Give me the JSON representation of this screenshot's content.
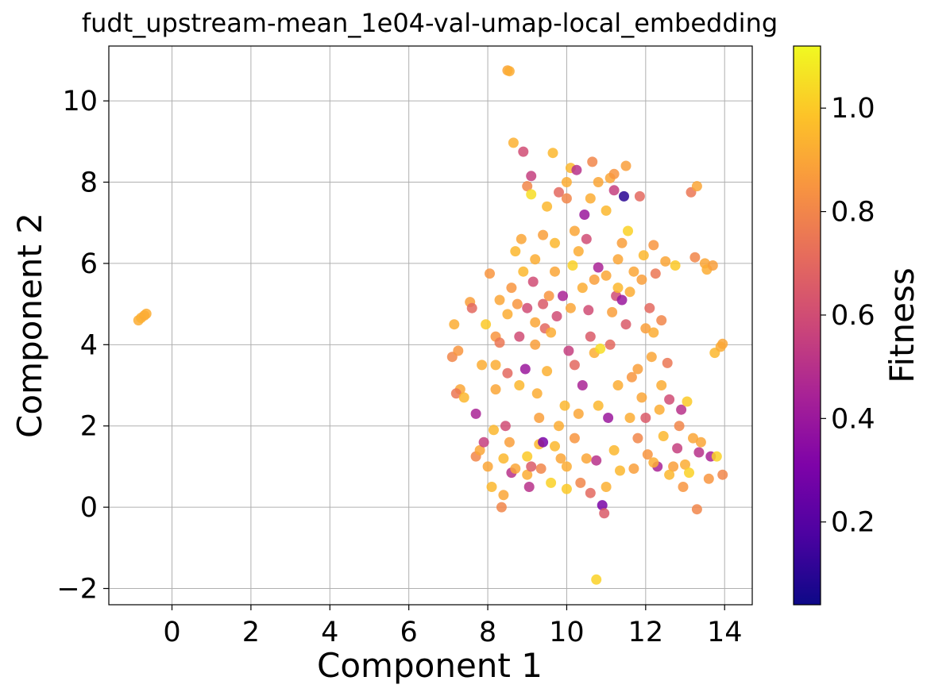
{
  "chart_data": {
    "type": "scatter",
    "title": "fudt_upstream-mean_1e04-val-umap-local_embedding",
    "xlabel": "Component 1",
    "ylabel": "Component 2",
    "xlim": [
      -1.6,
      14.7
    ],
    "ylim": [
      -2.4,
      11.35
    ],
    "xticks": [
      0,
      2,
      4,
      6,
      8,
      10,
      12,
      14
    ],
    "xtick_labels": [
      "0",
      "2",
      "4",
      "6",
      "8",
      "10",
      "12",
      "14"
    ],
    "yticks": [
      -2,
      0,
      2,
      4,
      6,
      8,
      10
    ],
    "ytick_labels": [
      "−2",
      "0",
      "2",
      "4",
      "6",
      "8",
      "10"
    ],
    "grid": true,
    "colormap": "plasma",
    "colorbar": {
      "label": "Fitness",
      "range": [
        0.04,
        1.12
      ],
      "ticks": [
        0.2,
        0.4,
        0.6,
        0.8,
        1.0
      ],
      "tick_labels": [
        "0.2",
        "0.4",
        "0.6",
        "0.8",
        "1.0"
      ]
    },
    "points": [
      [
        -0.85,
        4.6,
        0.92
      ],
      [
        -0.78,
        4.66,
        0.93
      ],
      [
        -0.7,
        4.72,
        0.91
      ],
      [
        -0.65,
        4.76,
        0.92
      ],
      [
        8.5,
        10.75,
        0.9
      ],
      [
        8.55,
        10.73,
        0.92
      ],
      [
        10.75,
        -1.78,
        1.02
      ],
      [
        7.1,
        3.7,
        0.8
      ],
      [
        7.15,
        4.5,
        0.92
      ],
      [
        7.3,
        2.9,
        0.9
      ],
      [
        7.2,
        2.8,
        0.75
      ],
      [
        7.25,
        3.85,
        0.85
      ],
      [
        7.4,
        2.7,
        0.95
      ],
      [
        7.55,
        5.05,
        0.88
      ],
      [
        7.6,
        4.9,
        0.7
      ],
      [
        7.7,
        2.3,
        0.45
      ],
      [
        7.7,
        1.25,
        0.8
      ],
      [
        7.8,
        1.4,
        0.9
      ],
      [
        7.85,
        3.5,
        0.92
      ],
      [
        7.9,
        1.6,
        0.55
      ],
      [
        7.95,
        4.5,
        1.0
      ],
      [
        8.0,
        1.0,
        0.9
      ],
      [
        8.05,
        5.75,
        0.85
      ],
      [
        8.1,
        0.5,
        0.95
      ],
      [
        8.15,
        1.9,
        0.95
      ],
      [
        8.2,
        4.2,
        0.85
      ],
      [
        8.2,
        2.9,
        0.9
      ],
      [
        8.3,
        4.05,
        0.75
      ],
      [
        8.35,
        0.0,
        0.8
      ],
      [
        8.4,
        0.3,
        0.9
      ],
      [
        8.45,
        2.0,
        0.6
      ],
      [
        8.5,
        3.3,
        0.7
      ],
      [
        8.5,
        4.75,
        0.92
      ],
      [
        8.55,
        1.6,
        0.88
      ],
      [
        8.6,
        0.85,
        0.5
      ],
      [
        8.65,
        8.97,
        0.93
      ],
      [
        8.7,
        6.3,
        0.95
      ],
      [
        8.75,
        5.0,
        0.85
      ],
      [
        8.8,
        4.2,
        0.6
      ],
      [
        8.85,
        6.6,
        0.9
      ],
      [
        8.9,
        8.75,
        0.6
      ],
      [
        8.95,
        3.4,
        0.4
      ],
      [
        9.0,
        7.9,
        0.8
      ],
      [
        9.0,
        1.25,
        1.0
      ],
      [
        9.05,
        0.5,
        0.5
      ],
      [
        9.1,
        8.15,
        0.55
      ],
      [
        9.1,
        7.7,
        1.05
      ],
      [
        9.15,
        5.55,
        0.6
      ],
      [
        9.2,
        4.55,
        0.9
      ],
      [
        9.25,
        2.8,
        0.92
      ],
      [
        9.3,
        1.55,
        0.95
      ],
      [
        9.35,
        0.95,
        0.8
      ],
      [
        9.4,
        6.7,
        0.88
      ],
      [
        9.4,
        1.6,
        0.3
      ],
      [
        9.45,
        4.4,
        0.7
      ],
      [
        9.5,
        3.35,
        0.93
      ],
      [
        9.55,
        5.2,
        0.85
      ],
      [
        9.6,
        0.6,
        1.02
      ],
      [
        9.65,
        8.72,
        0.95
      ],
      [
        9.7,
        5.8,
        0.9
      ],
      [
        9.75,
        4.7,
        0.6
      ],
      [
        9.8,
        7.75,
        0.7
      ],
      [
        9.85,
        1.2,
        0.9
      ],
      [
        9.9,
        5.2,
        0.45
      ],
      [
        9.95,
        2.5,
        0.95
      ],
      [
        10.0,
        0.45,
        1.0
      ],
      [
        10.0,
        7.6,
        0.8
      ],
      [
        10.05,
        3.85,
        0.55
      ],
      [
        10.1,
        8.35,
        0.95
      ],
      [
        10.15,
        5.95,
        1.02
      ],
      [
        10.2,
        1.7,
        0.85
      ],
      [
        10.25,
        8.3,
        0.5
      ],
      [
        10.3,
        6.3,
        0.92
      ],
      [
        10.35,
        0.6,
        0.8
      ],
      [
        10.4,
        3.0,
        0.45
      ],
      [
        10.45,
        7.2,
        0.4
      ],
      [
        10.5,
        6.6,
        0.6
      ],
      [
        10.55,
        4.85,
        0.6
      ],
      [
        10.6,
        0.35,
        0.7
      ],
      [
        10.65,
        8.5,
        0.8
      ],
      [
        10.7,
        3.8,
        0.92
      ],
      [
        10.75,
        1.15,
        0.5
      ],
      [
        10.8,
        5.9,
        0.45
      ],
      [
        10.85,
        3.9,
        1.05
      ],
      [
        10.9,
        0.05,
        0.3
      ],
      [
        10.95,
        -0.15,
        0.65
      ],
      [
        11.0,
        0.5,
        0.93
      ],
      [
        11.05,
        2.2,
        0.4
      ],
      [
        11.1,
        8.1,
        0.9
      ],
      [
        11.15,
        4.8,
        0.88
      ],
      [
        11.2,
        7.8,
        0.55
      ],
      [
        11.25,
        5.2,
        0.6
      ],
      [
        11.3,
        6.1,
        0.9
      ],
      [
        11.35,
        0.9,
        0.95
      ],
      [
        11.4,
        5.1,
        0.4
      ],
      [
        11.45,
        7.65,
        0.1
      ],
      [
        11.5,
        8.4,
        0.88
      ],
      [
        11.55,
        6.8,
        1.02
      ],
      [
        11.6,
        2.2,
        0.92
      ],
      [
        11.65,
        3.2,
        0.85
      ],
      [
        11.7,
        5.8,
        0.9
      ],
      [
        11.8,
        1.7,
        0.8
      ],
      [
        11.85,
        7.65,
        0.7
      ],
      [
        11.9,
        2.7,
        0.9
      ],
      [
        11.95,
        6.2,
        0.95
      ],
      [
        12.0,
        4.4,
        0.88
      ],
      [
        12.05,
        1.3,
        0.85
      ],
      [
        12.1,
        4.9,
        0.7
      ],
      [
        12.15,
        3.7,
        0.9
      ],
      [
        12.2,
        6.45,
        0.85
      ],
      [
        12.25,
        5.75,
        0.75
      ],
      [
        12.3,
        1.0,
        0.45
      ],
      [
        12.35,
        2.4,
        0.92
      ],
      [
        12.4,
        4.6,
        0.8
      ],
      [
        12.45,
        1.75,
        0.95
      ],
      [
        12.5,
        6.05,
        0.9
      ],
      [
        12.55,
        3.55,
        0.75
      ],
      [
        12.6,
        2.65,
        0.6
      ],
      [
        12.7,
        1.0,
        0.88
      ],
      [
        12.75,
        5.95,
        1.0
      ],
      [
        12.8,
        1.45,
        0.55
      ],
      [
        12.85,
        2.0,
        0.8
      ],
      [
        12.9,
        2.4,
        0.5
      ],
      [
        12.95,
        0.5,
        0.85
      ],
      [
        13.0,
        1.05,
        0.92
      ],
      [
        13.05,
        2.6,
        1.0
      ],
      [
        13.1,
        0.85,
        1.02
      ],
      [
        13.15,
        7.75,
        0.75
      ],
      [
        13.2,
        1.7,
        0.9
      ],
      [
        13.25,
        6.15,
        0.8
      ],
      [
        13.3,
        7.9,
        0.9
      ],
      [
        13.3,
        -0.05,
        0.8
      ],
      [
        13.35,
        1.35,
        0.5
      ],
      [
        13.4,
        1.6,
        0.9
      ],
      [
        13.5,
        6.0,
        0.9
      ],
      [
        13.55,
        5.85,
        0.92
      ],
      [
        13.6,
        0.7,
        0.85
      ],
      [
        13.65,
        1.25,
        0.45
      ],
      [
        13.7,
        5.95,
        0.88
      ],
      [
        13.75,
        3.8,
        0.95
      ],
      [
        13.8,
        1.25,
        1.02
      ],
      [
        13.9,
        3.95,
        0.92
      ],
      [
        13.95,
        4.02,
        0.9
      ],
      [
        13.95,
        0.8,
        0.8
      ],
      [
        8.3,
        5.1,
        0.9
      ],
      [
        8.6,
        5.4,
        0.85
      ],
      [
        8.9,
        5.8,
        0.95
      ],
      [
        9.2,
        4.0,
        0.88
      ],
      [
        9.6,
        4.3,
        0.92
      ],
      [
        10.1,
        4.9,
        0.9
      ],
      [
        10.4,
        5.4,
        0.92
      ],
      [
        10.7,
        5.6,
        0.88
      ],
      [
        11.0,
        5.7,
        0.9
      ],
      [
        11.3,
        5.4,
        0.95
      ],
      [
        11.6,
        5.3,
        0.92
      ],
      [
        11.9,
        5.6,
        0.88
      ],
      [
        12.2,
        4.3,
        0.92
      ],
      [
        8.4,
        1.2,
        0.95
      ],
      [
        8.7,
        0.95,
        0.9
      ],
      [
        9.0,
        0.8,
        0.92
      ],
      [
        9.7,
        1.5,
        0.95
      ],
      [
        10.0,
        1.0,
        0.92
      ],
      [
        10.5,
        1.2,
        0.9
      ],
      [
        11.2,
        1.4,
        0.95
      ],
      [
        11.7,
        0.95,
        0.88
      ],
      [
        12.2,
        1.1,
        0.92
      ],
      [
        12.6,
        0.8,
        0.95
      ],
      [
        8.2,
        3.5,
        0.92
      ],
      [
        8.8,
        3.0,
        0.95
      ],
      [
        9.3,
        2.2,
        0.88
      ],
      [
        9.8,
        2.0,
        0.92
      ],
      [
        10.3,
        2.3,
        0.9
      ],
      [
        10.8,
        2.5,
        0.95
      ],
      [
        11.3,
        3.0,
        0.92
      ],
      [
        11.8,
        3.4,
        0.88
      ],
      [
        12.4,
        3.0,
        0.92
      ],
      [
        9.2,
        6.1,
        0.92
      ],
      [
        9.7,
        6.5,
        0.95
      ],
      [
        10.2,
        6.8,
        0.9
      ],
      [
        10.6,
        7.6,
        0.92
      ],
      [
        11.0,
        7.3,
        0.95
      ],
      [
        11.4,
        6.5,
        0.88
      ],
      [
        9.5,
        7.4,
        0.95
      ],
      [
        10.0,
        8.0,
        0.92
      ],
      [
        10.8,
        8.0,
        0.9
      ],
      [
        11.2,
        8.2,
        0.85
      ],
      [
        9.0,
        4.9,
        0.6
      ],
      [
        9.4,
        5.0,
        0.65
      ],
      [
        10.6,
        4.2,
        0.65
      ],
      [
        11.1,
        4.0,
        0.7
      ],
      [
        11.5,
        4.5,
        0.65
      ],
      [
        12.0,
        2.2,
        0.65
      ],
      [
        10.2,
        3.5,
        0.7
      ],
      [
        9.1,
        1.0,
        0.65
      ]
    ]
  }
}
